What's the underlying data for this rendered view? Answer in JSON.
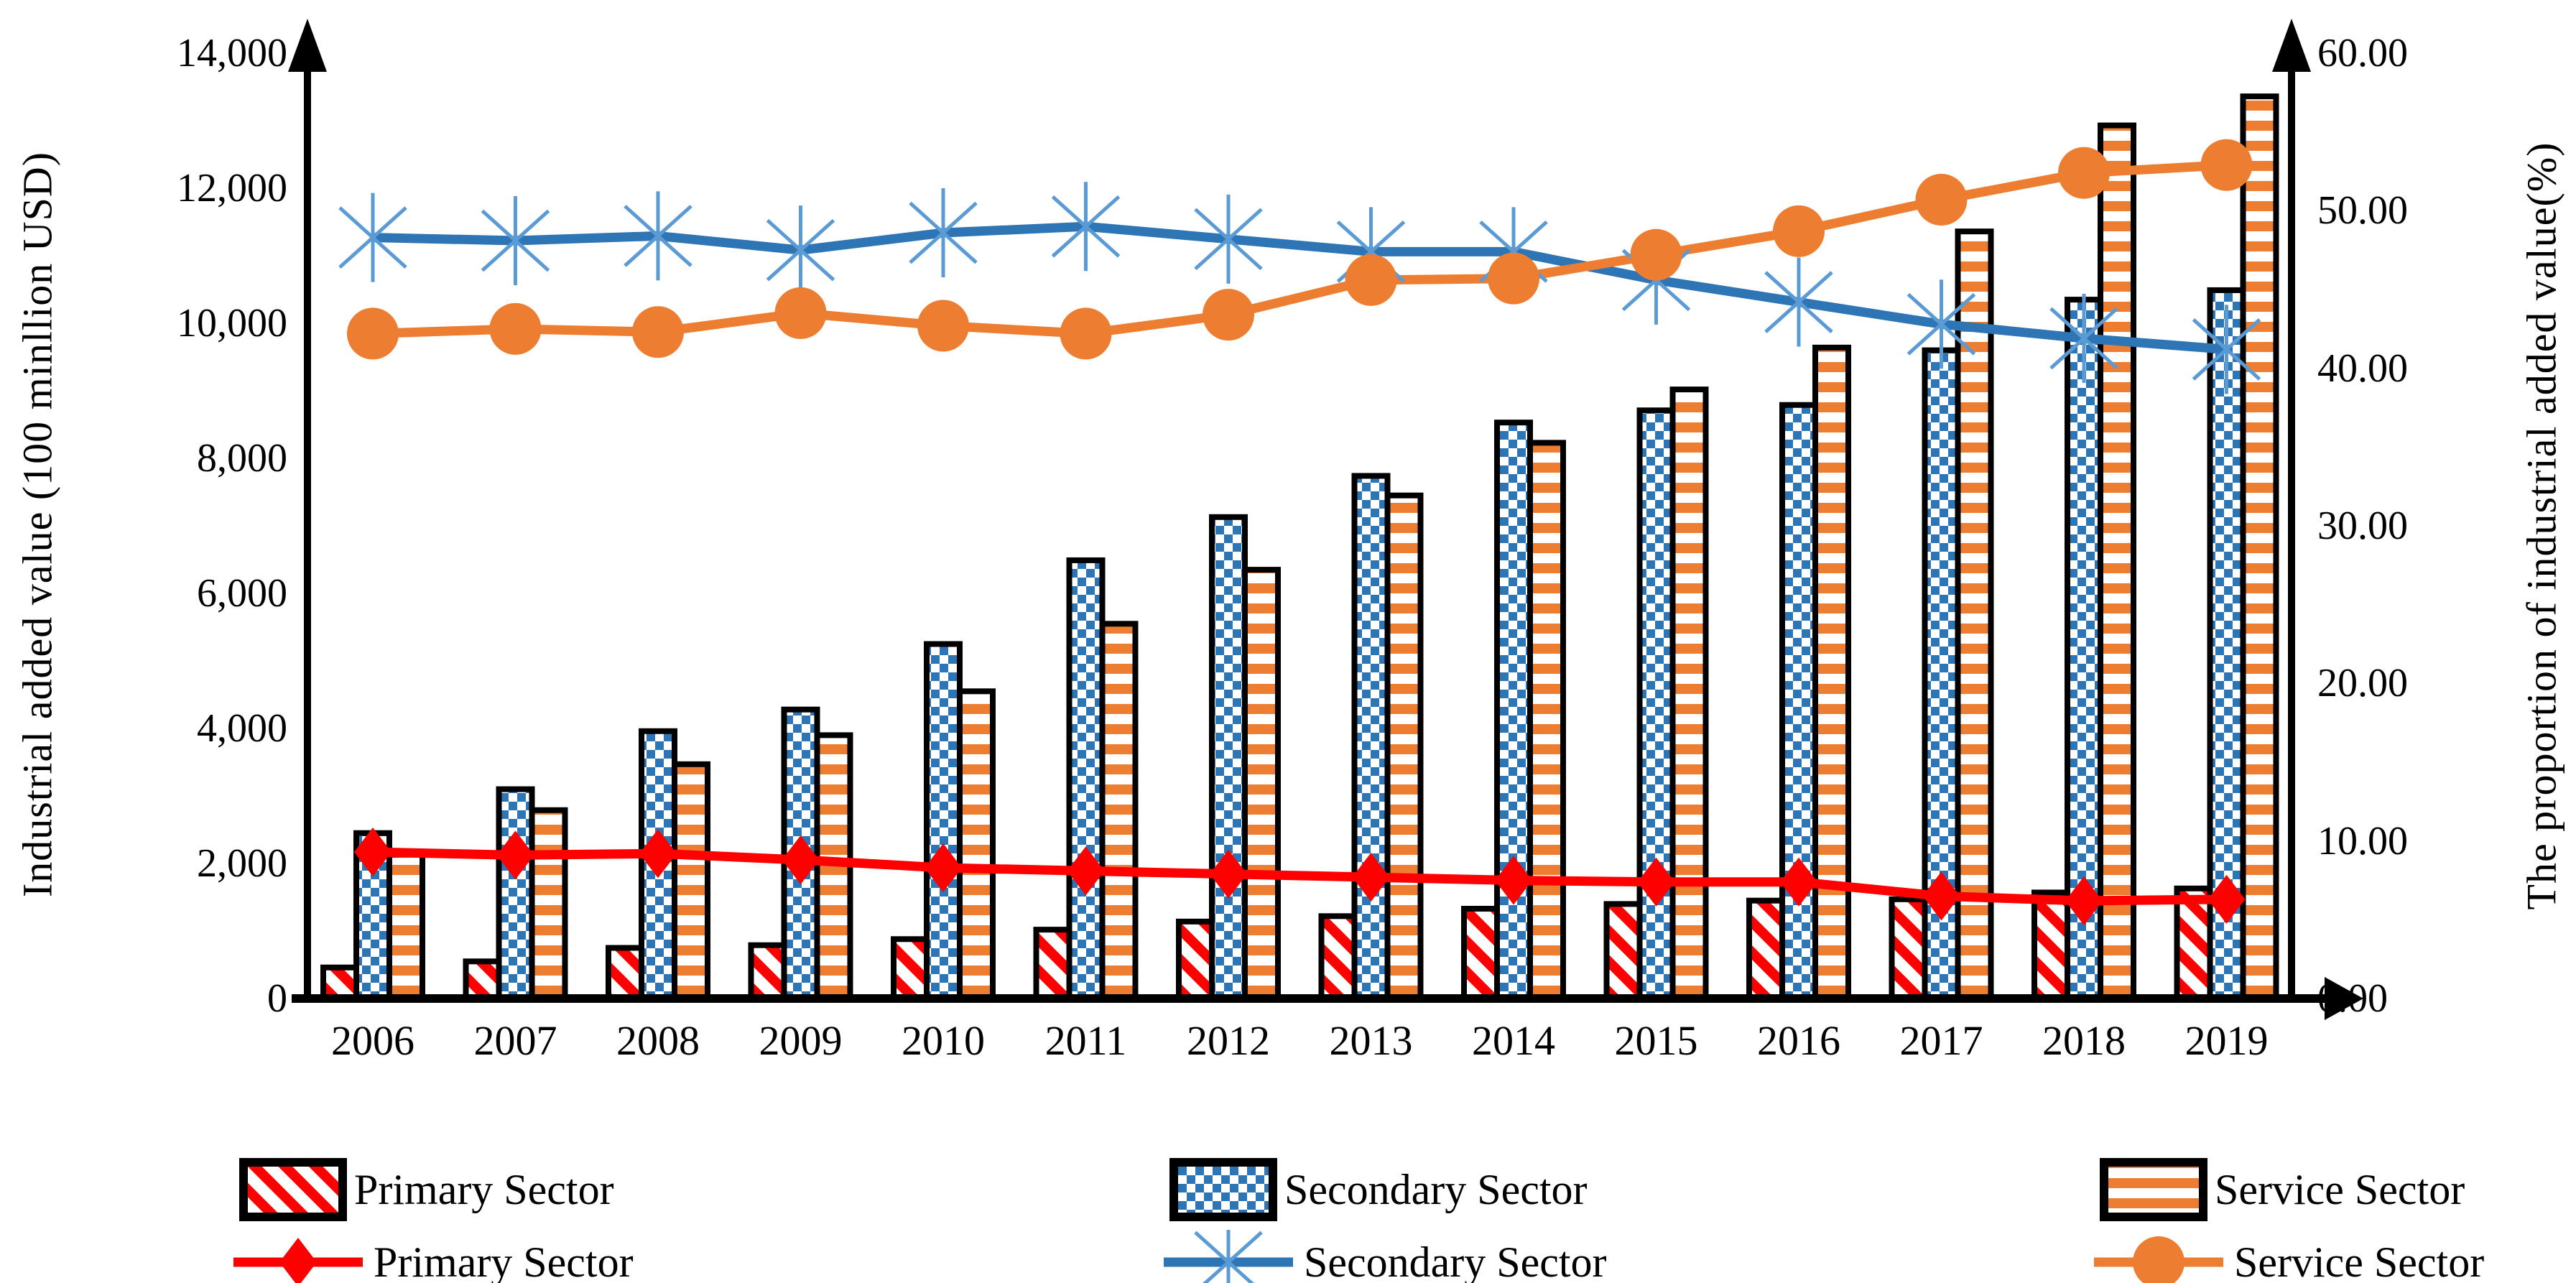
{
  "chart_data": {
    "type": "bar+line",
    "title": "",
    "categories": [
      "2006",
      "2007",
      "2008",
      "2009",
      "2010",
      "2011",
      "2012",
      "2013",
      "2014",
      "2015",
      "2016",
      "2017",
      "2018",
      "2019"
    ],
    "ylabel_left": "Industrial added value (100 minllion USD)",
    "ylabel_right": "The proportion of  industrial added value(%)",
    "ylim_left": [
      0,
      14000
    ],
    "ylim_right": [
      0,
      60
    ],
    "grid": false,
    "legend_position": "bottom",
    "left_ticks": [
      "0",
      "2,000",
      "4,000",
      "6,000",
      "8,000",
      "10,000",
      "12,000",
      "14,000"
    ],
    "right_ticks": [
      "0.00",
      "10.00",
      "20.00",
      "30.00",
      "40.00",
      "50.00",
      "60.00"
    ],
    "bar_series": [
      {
        "name": "Primary Sector",
        "axis": "left",
        "pattern": "red-diagonal-hatch",
        "color": "#FF0000",
        "values": [
          460,
          550,
          750,
          790,
          880,
          1020,
          1140,
          1220,
          1330,
          1400,
          1450,
          1470,
          1570,
          1630
        ]
      },
      {
        "name": "Secondary Sector",
        "axis": "left",
        "pattern": "blue-checkerboard",
        "color": "#2E75B6",
        "values": [
          2450,
          3100,
          3960,
          4280,
          5250,
          6490,
          7130,
          7740,
          8530,
          8710,
          8790,
          9600,
          10350,
          10490
        ]
      },
      {
        "name": "Service Sector",
        "axis": "left",
        "pattern": "orange-horizontal-stripe",
        "color": "#ED7D31",
        "values": [
          2130,
          2790,
          3470,
          3900,
          4550,
          5550,
          6350,
          7450,
          8230,
          9020,
          9640,
          11360,
          12930,
          13360
        ]
      }
    ],
    "line_series": [
      {
        "name": "Primary Sector",
        "axis": "right",
        "marker": "diamond",
        "color": "#FF0000",
        "values": [
          9.3,
          9.1,
          9.2,
          8.8,
          8.3,
          8.1,
          7.9,
          7.7,
          7.5,
          7.4,
          7.4,
          6.5,
          6.2,
          6.3
        ]
      },
      {
        "name": "Secondary Sector",
        "axis": "right",
        "marker": "asterisk",
        "color": "#2E75B6",
        "marker_color": "#5B9BD5",
        "values": [
          48.3,
          48.1,
          48.4,
          47.5,
          48.6,
          49.0,
          48.2,
          47.4,
          47.4,
          45.6,
          44.2,
          42.8,
          41.9,
          41.2
        ]
      },
      {
        "name": "Service Sector",
        "axis": "right",
        "marker": "circle",
        "color": "#ED7D31",
        "values": [
          42.2,
          42.5,
          42.3,
          43.5,
          42.7,
          42.2,
          43.4,
          45.6,
          45.7,
          47.2,
          48.7,
          50.7,
          52.4,
          52.9
        ]
      }
    ],
    "legend": {
      "bar_items": [
        "Primary Sector",
        "Secondary Sector",
        "Service Sector"
      ],
      "line_items": [
        "Primary Sector",
        "Secondary Sector",
        "Service Sector"
      ]
    },
    "colors": {
      "red": "#FF0000",
      "blue": "#2E75B6",
      "light_blue": "#5B9BD5",
      "orange": "#ED7D31",
      "axis": "#000000"
    }
  }
}
